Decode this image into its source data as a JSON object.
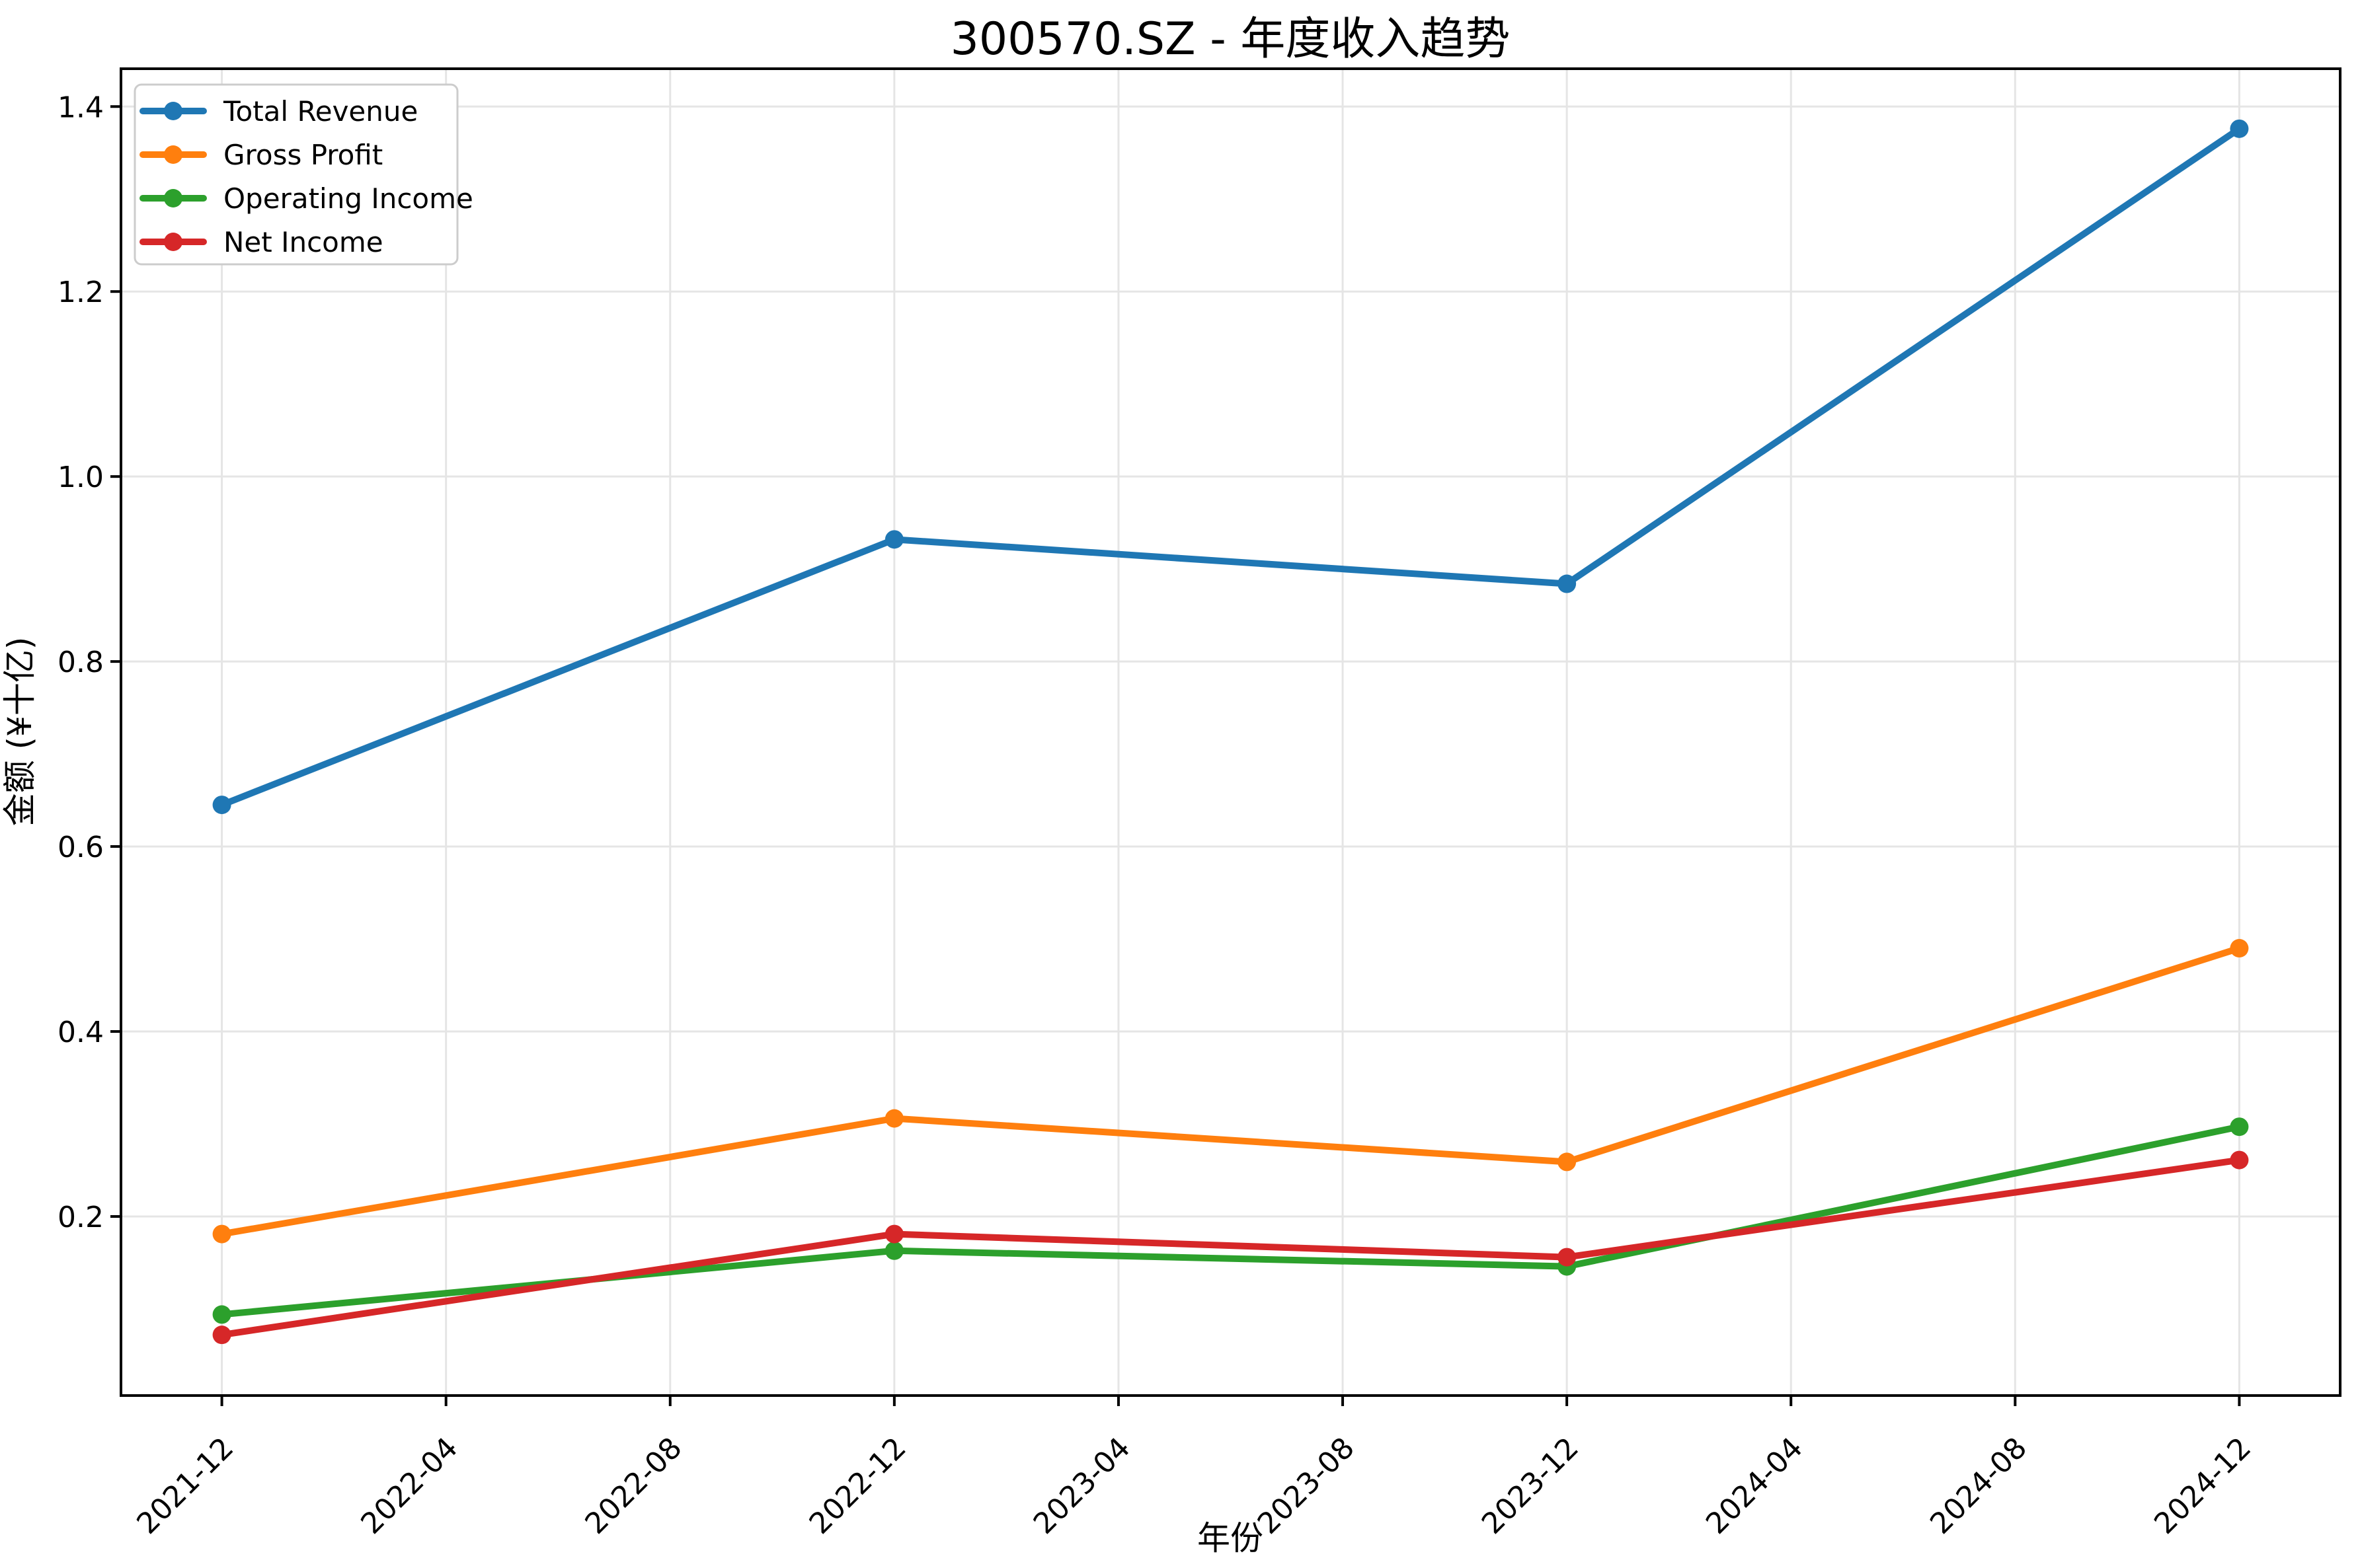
{
  "title": "300570.SZ - 年度收入趋势",
  "chart_data": {
    "type": "line",
    "title": "300570.SZ - 年度收入趋势",
    "xlabel": "年份",
    "ylabel": "金额 (¥十亿)",
    "categories": [
      "2021-12",
      "2022-12",
      "2023-12",
      "2024-12"
    ],
    "x_months": [
      0,
      12,
      24,
      36
    ],
    "series": [
      {
        "name": "Total Revenue",
        "color": "#1f77b4",
        "values": [
          0.645,
          0.932,
          0.884,
          1.376
        ]
      },
      {
        "name": "Gross Profit",
        "color": "#ff7f0e",
        "values": [
          0.181,
          0.306,
          0.259,
          0.49
        ]
      },
      {
        "name": "Operating Income",
        "color": "#2ca02c",
        "values": [
          0.094,
          0.163,
          0.146,
          0.297
        ]
      },
      {
        "name": "Net Income",
        "color": "#d62728",
        "values": [
          0.072,
          0.181,
          0.156,
          0.261
        ]
      }
    ],
    "x_tick_months": [
      0,
      4,
      8,
      12,
      16,
      20,
      24,
      28,
      32,
      36
    ],
    "x_tick_labels": [
      "2021-12",
      "2022-04",
      "2022-08",
      "2022-12",
      "2023-04",
      "2023-08",
      "2023-12",
      "2024-04",
      "2024-08",
      "2024-12"
    ],
    "y_ticks": [
      0.2,
      0.4,
      0.6,
      0.8,
      1.0,
      1.2,
      1.4
    ],
    "y_tick_labels": [
      "0.2",
      "0.4",
      "0.6",
      "0.8",
      "1.0",
      "1.2",
      "1.4"
    ],
    "ylim": [
      0.0064,
      1.4409
    ],
    "xlim_months": [
      -1.8,
      37.8
    ],
    "grid": true,
    "grid_color": "#e5e5e5",
    "legend_position": "upper-left",
    "legend_border_color": "#cccccc",
    "spine_color": "#000000",
    "background_color": "#ffffff"
  }
}
